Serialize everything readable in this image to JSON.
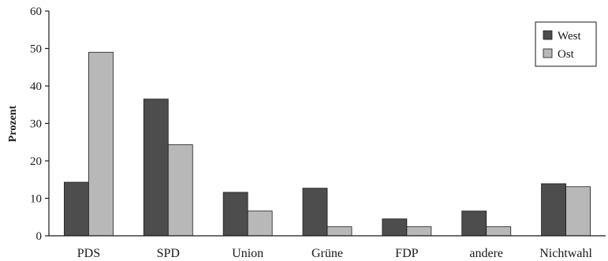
{
  "chart_data": {
    "type": "bar",
    "title": "",
    "xlabel": "",
    "ylabel": "Prozent",
    "ylim": [
      0,
      60
    ],
    "yticks": [
      0,
      10,
      20,
      30,
      40,
      50,
      60
    ],
    "grid": false,
    "legend_position": "top-right",
    "categories": [
      "PDS",
      "SPD",
      "Union",
      "Grüne",
      "FDP",
      "andere",
      "Nichtwahl"
    ],
    "series": [
      {
        "name": "West",
        "color": "#4d4d4d",
        "values": [
          14.3,
          36.5,
          11.6,
          12.7,
          4.5,
          6.6,
          13.9
        ]
      },
      {
        "name": "Ost",
        "color": "#b8b8b8",
        "values": [
          49.0,
          24.3,
          6.6,
          2.4,
          2.4,
          2.4,
          13.1
        ]
      }
    ]
  }
}
